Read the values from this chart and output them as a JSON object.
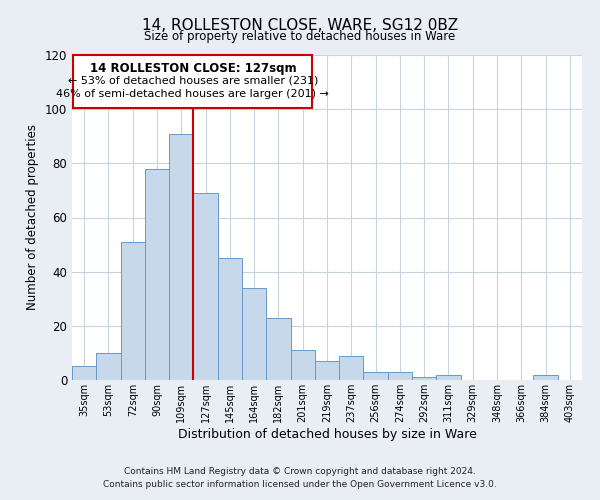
{
  "title": "14, ROLLESTON CLOSE, WARE, SG12 0BZ",
  "subtitle": "Size of property relative to detached houses in Ware",
  "xlabel": "Distribution of detached houses by size in Ware",
  "ylabel": "Number of detached properties",
  "bin_labels": [
    "35sqm",
    "53sqm",
    "72sqm",
    "90sqm",
    "109sqm",
    "127sqm",
    "145sqm",
    "164sqm",
    "182sqm",
    "201sqm",
    "219sqm",
    "237sqm",
    "256sqm",
    "274sqm",
    "292sqm",
    "311sqm",
    "329sqm",
    "348sqm",
    "366sqm",
    "384sqm",
    "403sqm"
  ],
  "bar_values": [
    5,
    10,
    51,
    78,
    91,
    69,
    45,
    34,
    23,
    11,
    7,
    9,
    3,
    3,
    1,
    2,
    0,
    0,
    0,
    2,
    0
  ],
  "bar_color": "#c8d8eb",
  "bar_edge_color": "#6699cc",
  "vline_color": "#cc0000",
  "ylim": [
    0,
    120
  ],
  "yticks": [
    0,
    20,
    40,
    60,
    80,
    100,
    120
  ],
  "annotation_title": "14 ROLLESTON CLOSE: 127sqm",
  "annotation_line1": "← 53% of detached houses are smaller (231)",
  "annotation_line2": "46% of semi-detached houses are larger (201) →",
  "annotation_box_color": "#ffffff",
  "annotation_box_edge": "#cc0000",
  "footer1": "Contains HM Land Registry data © Crown copyright and database right 2024.",
  "footer2": "Contains public sector information licensed under the Open Government Licence v3.0.",
  "background_color": "#e8eef4",
  "plot_bg_color": "#ffffff",
  "grid_color": "#c8d4dc"
}
